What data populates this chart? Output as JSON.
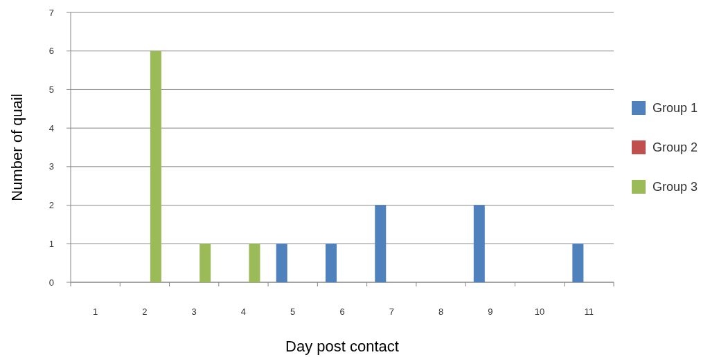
{
  "chart_data": {
    "type": "bar",
    "xlabel": "Day post contact",
    "ylabel": "Number of quail",
    "categories": [
      "1",
      "2",
      "3",
      "4",
      "5",
      "6",
      "7",
      "8",
      "9",
      "10",
      "11"
    ],
    "series": [
      {
        "name": "Group 1",
        "color": "#4f81bd",
        "values": [
          0,
          0,
          0,
          0,
          1,
          1,
          2,
          0,
          2,
          0,
          1
        ]
      },
      {
        "name": "Group 2",
        "color": "#c0504d",
        "values": [
          0,
          0,
          0,
          0,
          0,
          0,
          0,
          0,
          0,
          0,
          0
        ]
      },
      {
        "name": "Group 3",
        "color": "#9bbb59",
        "values": [
          0,
          6,
          1,
          1,
          0,
          0,
          0,
          0,
          0,
          0,
          0
        ]
      }
    ],
    "ylim": [
      0,
      7
    ],
    "yticks": [
      0,
      1,
      2,
      3,
      4,
      5,
      6,
      7
    ],
    "grid": "y",
    "legend": "right"
  }
}
